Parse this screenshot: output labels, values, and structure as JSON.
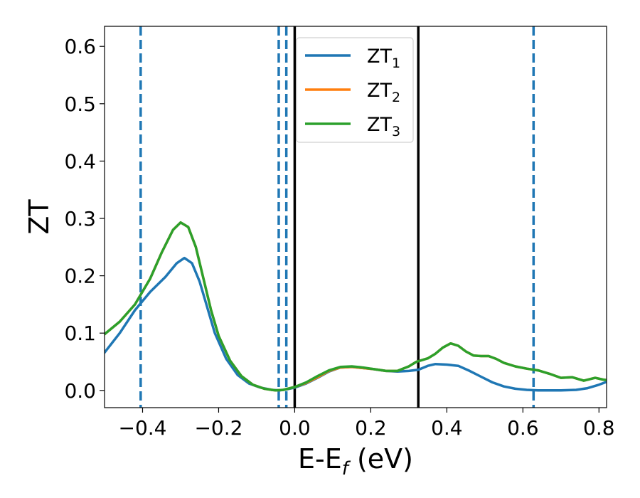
{
  "chart_data": {
    "type": "line",
    "xlabel": "E-E",
    "xlabel_sub": "f",
    "xlabel_unit": " (eV)",
    "ylabel": "ZT",
    "xlim": [
      -0.5,
      0.82
    ],
    "ylim": [
      -0.03,
      0.635
    ],
    "grid": false,
    "legend_position": "top-center",
    "x_ticks": [
      -0.4,
      -0.2,
      0.0,
      0.2,
      0.4,
      0.6,
      0.8
    ],
    "x_tick_labels": [
      "−0.4",
      "−0.2",
      "0.0",
      "0.2",
      "0.4",
      "0.6",
      "0.8"
    ],
    "y_ticks": [
      0.0,
      0.1,
      0.2,
      0.3,
      0.4,
      0.5,
      0.6
    ],
    "y_tick_labels": [
      "0.0",
      "0.1",
      "0.2",
      "0.3",
      "0.4",
      "0.5",
      "0.6"
    ],
    "vertical_lines": [
      {
        "x": -0.405,
        "style": "dashed",
        "color": "#1f77b4"
      },
      {
        "x": -0.042,
        "style": "dashed",
        "color": "#1f77b4"
      },
      {
        "x": -0.022,
        "style": "dashed",
        "color": "#1f77b4"
      },
      {
        "x": 0.0,
        "style": "solid",
        "color": "#000000"
      },
      {
        "x": 0.325,
        "style": "solid",
        "color": "#000000"
      },
      {
        "x": 0.628,
        "style": "dashed",
        "color": "#1f77b4"
      }
    ],
    "series": [
      {
        "name": "ZT",
        "sub": "1",
        "color": "#1f77b4",
        "points": [
          [
            -0.5,
            0.066
          ],
          [
            -0.46,
            0.1
          ],
          [
            -0.42,
            0.14
          ],
          [
            -0.38,
            0.172
          ],
          [
            -0.34,
            0.198
          ],
          [
            -0.31,
            0.222
          ],
          [
            -0.29,
            0.231
          ],
          [
            -0.27,
            0.222
          ],
          [
            -0.25,
            0.19
          ],
          [
            -0.23,
            0.145
          ],
          [
            -0.21,
            0.1
          ],
          [
            -0.18,
            0.055
          ],
          [
            -0.15,
            0.027
          ],
          [
            -0.12,
            0.012
          ],
          [
            -0.09,
            0.005
          ],
          [
            -0.06,
            0.001
          ],
          [
            -0.04,
            0.0
          ],
          [
            -0.02,
            0.002
          ],
          [
            0.0,
            0.005
          ],
          [
            0.03,
            0.012
          ],
          [
            0.06,
            0.022
          ],
          [
            0.09,
            0.033
          ],
          [
            0.12,
            0.04
          ],
          [
            0.15,
            0.041
          ],
          [
            0.18,
            0.039
          ],
          [
            0.21,
            0.037
          ],
          [
            0.24,
            0.034
          ],
          [
            0.27,
            0.033
          ],
          [
            0.3,
            0.034
          ],
          [
            0.325,
            0.036
          ],
          [
            0.35,
            0.043
          ],
          [
            0.37,
            0.046
          ],
          [
            0.4,
            0.045
          ],
          [
            0.43,
            0.043
          ],
          [
            0.46,
            0.034
          ],
          [
            0.49,
            0.024
          ],
          [
            0.52,
            0.014
          ],
          [
            0.55,
            0.007
          ],
          [
            0.58,
            0.003
          ],
          [
            0.61,
            0.001
          ],
          [
            0.64,
            0.0
          ],
          [
            0.7,
            0.0
          ],
          [
            0.74,
            0.001
          ],
          [
            0.77,
            0.004
          ],
          [
            0.8,
            0.01
          ],
          [
            0.82,
            0.015
          ]
        ]
      },
      {
        "name": "ZT",
        "sub": "2",
        "color": "#ff7f0e",
        "points": [
          [
            -0.5,
            0.098
          ],
          [
            -0.46,
            0.12
          ],
          [
            -0.42,
            0.15
          ],
          [
            -0.38,
            0.195
          ],
          [
            -0.35,
            0.24
          ],
          [
            -0.32,
            0.28
          ],
          [
            -0.3,
            0.293
          ],
          [
            -0.28,
            0.285
          ],
          [
            -0.26,
            0.25
          ],
          [
            -0.24,
            0.195
          ],
          [
            -0.22,
            0.14
          ],
          [
            -0.2,
            0.095
          ],
          [
            -0.17,
            0.052
          ],
          [
            -0.14,
            0.025
          ],
          [
            -0.11,
            0.01
          ],
          [
            -0.08,
            0.003
          ],
          [
            -0.05,
            0.0
          ],
          [
            -0.03,
            0.001
          ],
          [
            0.0,
            0.006
          ],
          [
            0.03,
            0.013
          ],
          [
            0.06,
            0.023
          ],
          [
            0.09,
            0.034
          ],
          [
            0.12,
            0.04
          ],
          [
            0.15,
            0.041
          ],
          [
            0.18,
            0.039
          ],
          [
            0.21,
            0.037
          ],
          [
            0.24,
            0.034
          ],
          [
            0.27,
            0.034
          ],
          [
            0.3,
            0.042
          ],
          [
            0.32,
            0.05
          ],
          [
            0.35,
            0.056
          ],
          [
            0.37,
            0.064
          ],
          [
            0.39,
            0.075
          ],
          [
            0.41,
            0.082
          ],
          [
            0.43,
            0.078
          ],
          [
            0.45,
            0.068
          ],
          [
            0.47,
            0.061
          ],
          [
            0.49,
            0.06
          ],
          [
            0.51,
            0.06
          ],
          [
            0.53,
            0.055
          ],
          [
            0.55,
            0.048
          ],
          [
            0.58,
            0.042
          ],
          [
            0.61,
            0.038
          ],
          [
            0.64,
            0.035
          ],
          [
            0.67,
            0.029
          ],
          [
            0.7,
            0.022
          ],
          [
            0.73,
            0.023
          ],
          [
            0.76,
            0.017
          ],
          [
            0.79,
            0.022
          ],
          [
            0.81,
            0.019
          ],
          [
            0.82,
            0.018
          ]
        ]
      },
      {
        "name": "ZT",
        "sub": "3",
        "color": "#2ca02c",
        "points": [
          [
            -0.5,
            0.098
          ],
          [
            -0.46,
            0.12
          ],
          [
            -0.42,
            0.15
          ],
          [
            -0.38,
            0.195
          ],
          [
            -0.35,
            0.24
          ],
          [
            -0.32,
            0.28
          ],
          [
            -0.3,
            0.293
          ],
          [
            -0.28,
            0.285
          ],
          [
            -0.26,
            0.25
          ],
          [
            -0.24,
            0.195
          ],
          [
            -0.22,
            0.14
          ],
          [
            -0.2,
            0.095
          ],
          [
            -0.17,
            0.052
          ],
          [
            -0.14,
            0.025
          ],
          [
            -0.11,
            0.01
          ],
          [
            -0.08,
            0.003
          ],
          [
            -0.05,
            0.0
          ],
          [
            -0.03,
            0.001
          ],
          [
            0.0,
            0.006
          ],
          [
            0.03,
            0.014
          ],
          [
            0.06,
            0.025
          ],
          [
            0.09,
            0.035
          ],
          [
            0.12,
            0.041
          ],
          [
            0.15,
            0.042
          ],
          [
            0.18,
            0.04
          ],
          [
            0.21,
            0.037
          ],
          [
            0.24,
            0.034
          ],
          [
            0.27,
            0.034
          ],
          [
            0.3,
            0.042
          ],
          [
            0.32,
            0.05
          ],
          [
            0.35,
            0.056
          ],
          [
            0.37,
            0.064
          ],
          [
            0.39,
            0.075
          ],
          [
            0.41,
            0.082
          ],
          [
            0.43,
            0.078
          ],
          [
            0.45,
            0.068
          ],
          [
            0.47,
            0.061
          ],
          [
            0.49,
            0.06
          ],
          [
            0.51,
            0.06
          ],
          [
            0.53,
            0.055
          ],
          [
            0.55,
            0.048
          ],
          [
            0.58,
            0.042
          ],
          [
            0.61,
            0.038
          ],
          [
            0.64,
            0.035
          ],
          [
            0.67,
            0.029
          ],
          [
            0.7,
            0.022
          ],
          [
            0.73,
            0.023
          ],
          [
            0.76,
            0.017
          ],
          [
            0.79,
            0.022
          ],
          [
            0.81,
            0.019
          ],
          [
            0.82,
            0.018
          ]
        ]
      }
    ]
  }
}
